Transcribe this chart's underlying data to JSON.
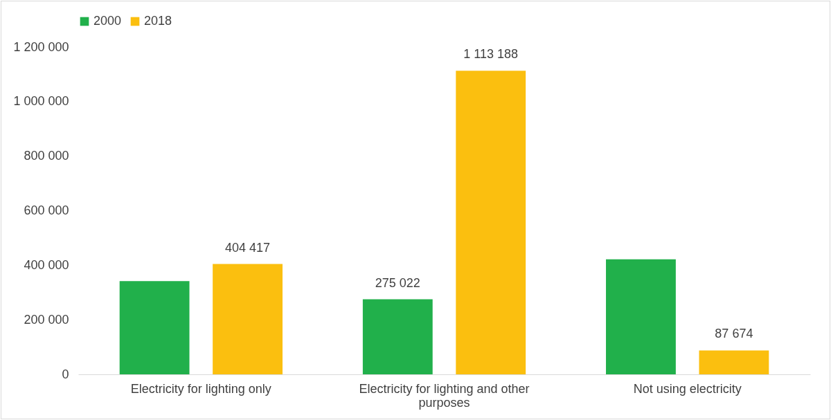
{
  "chart_data": {
    "type": "bar",
    "categories": [
      "Electricity for lighting only",
      "Electricity for lighting and other purposes",
      "Not using electricity"
    ],
    "series": [
      {
        "name": "2000",
        "color": "#21b04b",
        "values": [
          342000,
          275022,
          422000
        ],
        "value_labels": [
          null,
          "275 022",
          null
        ]
      },
      {
        "name": "2018",
        "color": "#fbbf0f",
        "values": [
          404417,
          1113188,
          87674
        ],
        "value_labels": [
          "404 417",
          "1 113 188",
          "87 674"
        ]
      }
    ],
    "ylim": [
      0,
      1200000
    ],
    "yticks": [
      {
        "value": 0,
        "label": "0"
      },
      {
        "value": 200000,
        "label": "200 000"
      },
      {
        "value": 400000,
        "label": "400 000"
      },
      {
        "value": 600000,
        "label": "600 000"
      },
      {
        "value": 800000,
        "label": "800 000"
      },
      {
        "value": 1000000,
        "label": "1 000 000"
      },
      {
        "value": 1200000,
        "label": "1 200 000"
      }
    ],
    "legend": "top"
  }
}
